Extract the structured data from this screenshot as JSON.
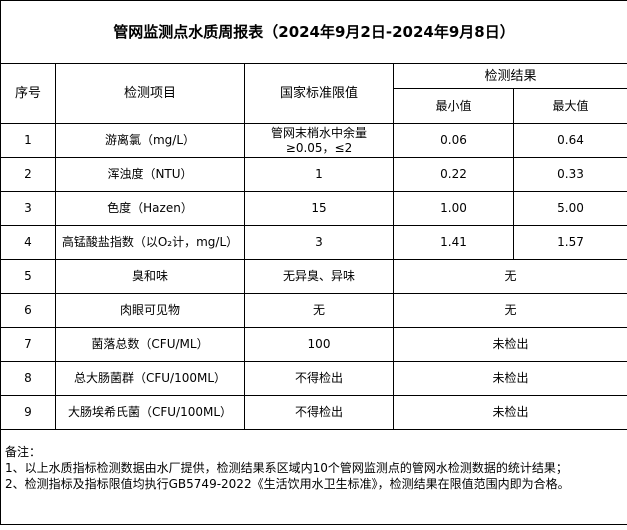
{
  "title": "管网监测点水质周报表（2024年9月2日-2024年9月8日）",
  "headers": {
    "no": "序号",
    "item": "检测项目",
    "limit": "国家标准限值",
    "result": "检测结果",
    "min": "最小值",
    "max": "最大值"
  },
  "rows": [
    {
      "no": "1",
      "item": "游离氯（mg/L）",
      "limit": "管网末梢水中余量≥0.05，≤2",
      "min": "0.06",
      "max": "0.64"
    },
    {
      "no": "2",
      "item": "浑浊度（NTU）",
      "limit": "1",
      "min": "0.22",
      "max": "0.33"
    },
    {
      "no": "3",
      "item": "色度（Hazen）",
      "limit": "15",
      "min": "1.00",
      "max": "5.00"
    },
    {
      "no": "4",
      "item": "高锰酸盐指数（以O₂计，mg/L）",
      "limit": "3",
      "min": "1.41",
      "max": "1.57"
    },
    {
      "no": "5",
      "item": "臭和味",
      "limit": "无异臭、异味",
      "result": "无"
    },
    {
      "no": "6",
      "item": "肉眼可见物",
      "limit": "无",
      "result": "无"
    },
    {
      "no": "7",
      "item": "菌落总数（CFU/ML）",
      "limit": "100",
      "result": "未检出"
    },
    {
      "no": "8",
      "item": "总大肠菌群（CFU/100ML）",
      "limit": "不得检出",
      "result": "未检出"
    },
    {
      "no": "9",
      "item": "大肠埃希氏菌（CFU/100ML）",
      "limit": "不得检出",
      "result": "未检出"
    }
  ],
  "notes": {
    "label": "备注：",
    "lines": [
      "1、以上水质指标检测数据由水厂提供，检测结果系区域内10个管网监测点的管网水检测数据的统计结果；",
      "2、检测指标及指标限值均执行GB5749-2022《生活饮用水卫生标准》，检测结果在限值范围内即为合格。"
    ]
  }
}
